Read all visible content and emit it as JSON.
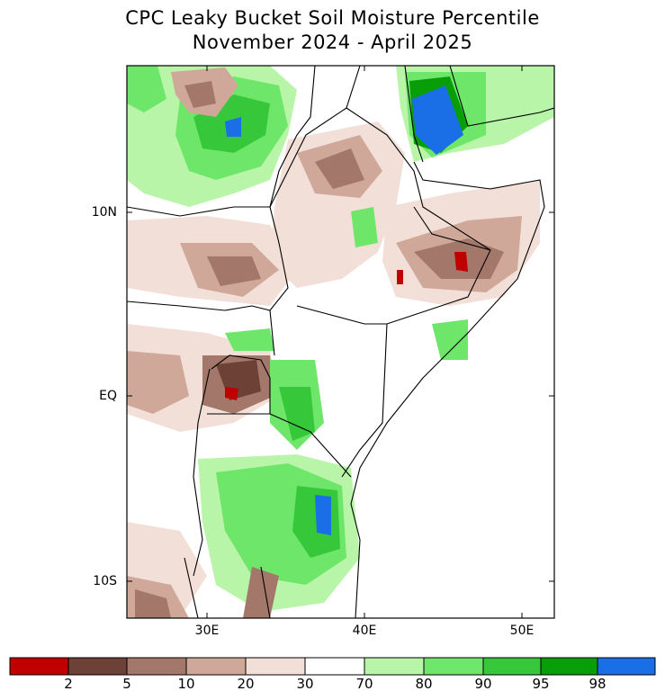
{
  "title_line1": "CPC Leaky Bucket Soil Moisture Percentile",
  "title_line2": "November 2024 - April 2025",
  "lat_labels": [
    "10N",
    "EQ",
    "10S"
  ],
  "lon_labels": [
    "30E",
    "40E",
    "50E"
  ],
  "colors": {
    "p0_2": "#c00000",
    "p2_5": "#6e4136",
    "p5_10": "#a3786a",
    "p10_20": "#cfa89a",
    "p20_30": "#f2e0d8",
    "p30_70": "#ffffff",
    "p70_80": "#b8f5a8",
    "p80_90": "#6ee66a",
    "p90_95": "#36c83a",
    "p95_98": "#089e08",
    "p98_100": "#1b6fe6"
  },
  "colorbar_labels": [
    "2",
    "5",
    "10",
    "20",
    "30",
    "70",
    "80",
    "90",
    "95",
    "98"
  ]
}
